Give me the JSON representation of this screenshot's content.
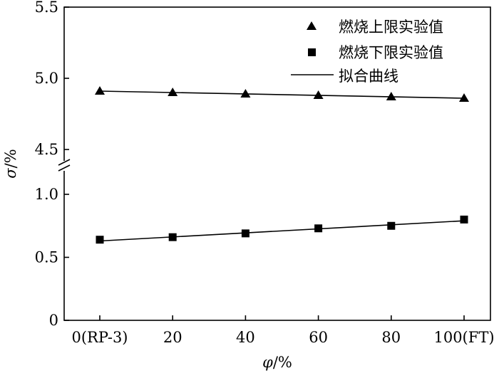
{
  "chart_data": {
    "type": "scatter",
    "xlabel_var": "φ",
    "xlabel_unit": "/%",
    "ylabel_var": "σ",
    "ylabel_unit": "/%",
    "x": [
      0,
      20,
      40,
      60,
      80,
      100
    ],
    "x_tick_labels": [
      "0(RP-3)",
      "20",
      "40",
      "60",
      "80",
      "100(FT)"
    ],
    "xlim": [
      0,
      100
    ],
    "y_axis_break": true,
    "y_lower_range": [
      0,
      1.25
    ],
    "y_upper_range": [
      4.4,
      5.5
    ],
    "y_tick_labels_lower": [
      "0",
      "0.5",
      "1.0"
    ],
    "y_tick_labels_upper": [
      "4.5",
      "5.0",
      "5.5"
    ],
    "series": [
      {
        "name": "燃烧上限实验值",
        "marker": "triangle",
        "values": [
          4.91,
          4.9,
          4.89,
          4.88,
          4.87,
          4.86
        ]
      },
      {
        "name": "燃烧下限实验值",
        "marker": "square",
        "values": [
          0.64,
          0.66,
          0.69,
          0.73,
          0.75,
          0.8
        ]
      }
    ],
    "fit": {
      "name": "拟合曲线",
      "upper": [
        4.91,
        4.86
      ],
      "lower": [
        0.63,
        0.79
      ]
    },
    "grid": false,
    "legend_position": "top-right"
  }
}
